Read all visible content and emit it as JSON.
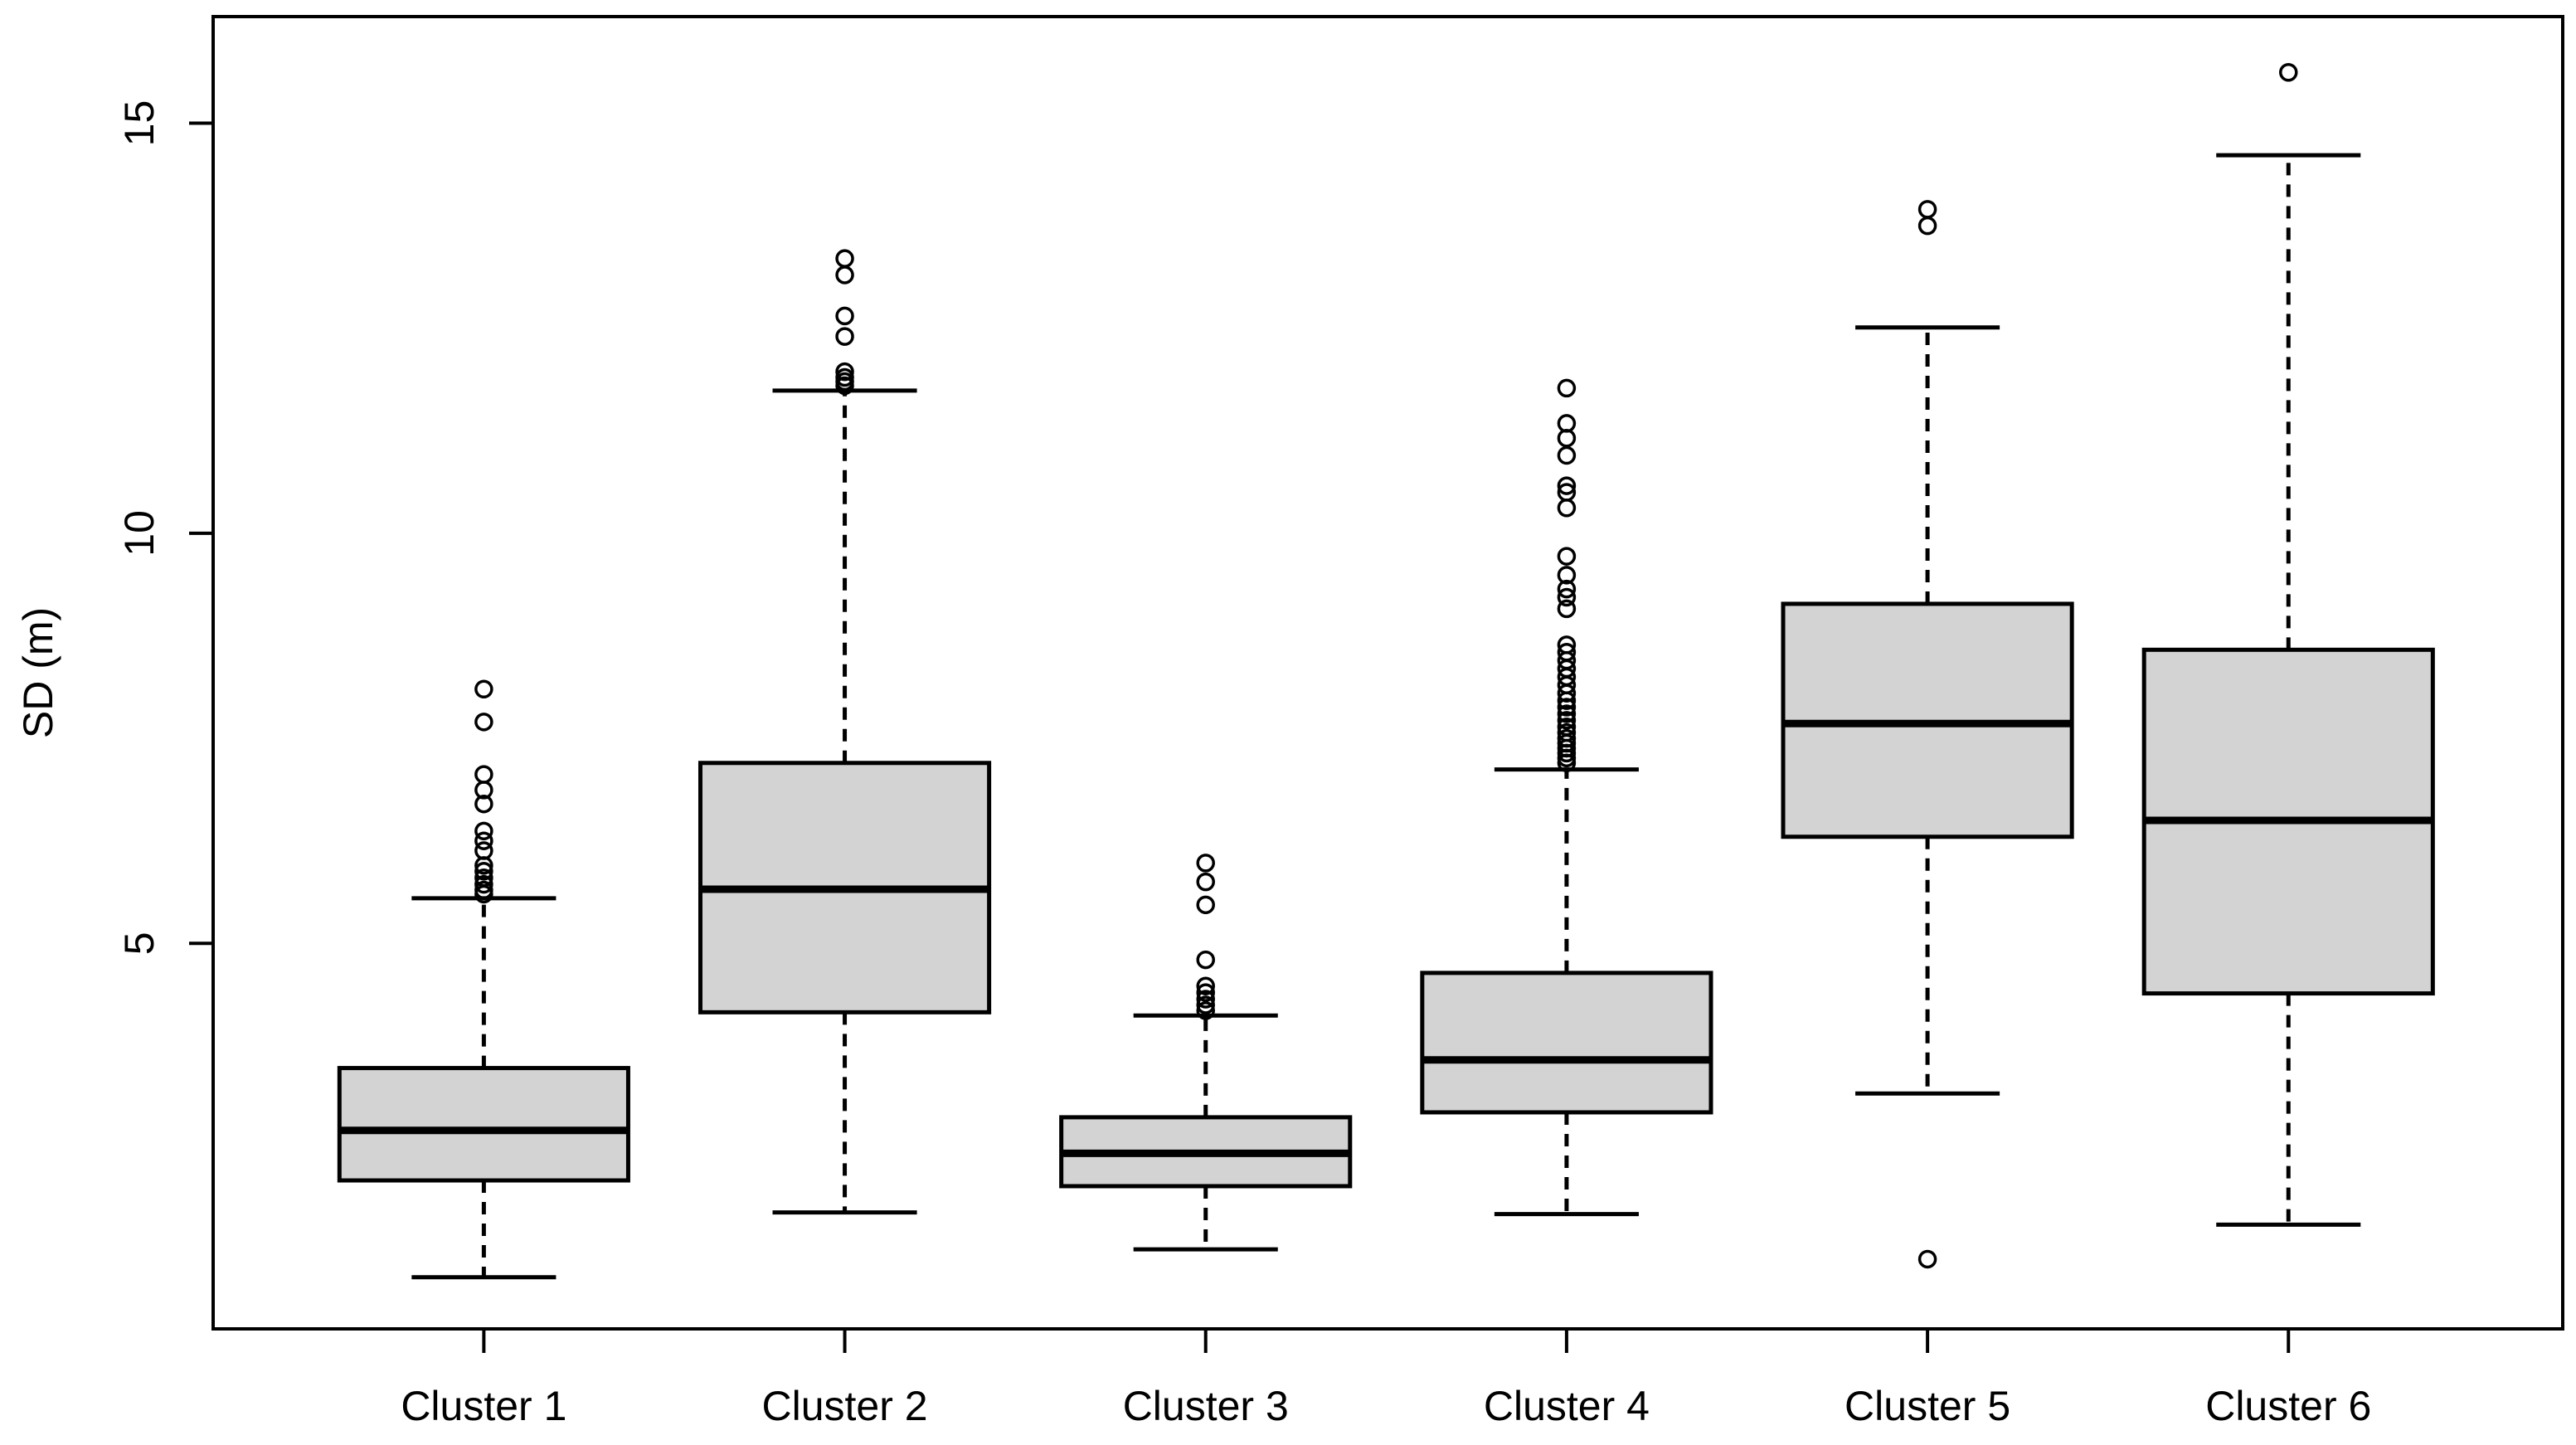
{
  "figure": {
    "background": "#ffffff",
    "accent_color": "#000000"
  },
  "chart_data": {
    "type": "boxplot",
    "title": "",
    "xlabel": "",
    "ylabel": "SD (m)",
    "categories": [
      "Cluster 1",
      "Cluster 2",
      "Cluster 3",
      "Cluster 4",
      "Cluster 5",
      "Cluster 6"
    ],
    "yticks": [
      5,
      10,
      15
    ],
    "ylim": [
      0.3,
      16.3
    ],
    "xlim": [
      0.25,
      6.76
    ],
    "grid": "off",
    "legend": "none",
    "box_fill": "#d3d3d3",
    "stroke_color": "#000000",
    "box_width_units": 0.8,
    "cap_width_units": 0.4,
    "series": [
      {
        "name": "Cluster 1",
        "whisker_low": 0.93,
        "q1": 2.11,
        "median": 2.72,
        "q3": 3.48,
        "whisker_high": 5.55,
        "outliers": [
          5.6,
          5.65,
          5.72,
          5.8,
          5.88,
          5.95,
          6.13,
          6.25,
          6.37,
          6.7,
          6.87,
          7.06,
          7.7,
          8.1
        ]
      },
      {
        "name": "Cluster 2",
        "whisker_low": 1.72,
        "q1": 4.16,
        "median": 5.66,
        "q3": 7.2,
        "whisker_high": 11.74,
        "outliers": [
          11.8,
          11.85,
          11.9,
          11.97,
          12.4,
          12.65,
          13.15,
          13.35
        ]
      },
      {
        "name": "Cluster 3",
        "whisker_low": 1.27,
        "q1": 2.04,
        "median": 2.44,
        "q3": 2.88,
        "whisker_high": 4.12,
        "outliers": [
          4.18,
          4.25,
          4.32,
          4.4,
          4.48,
          4.8,
          5.47,
          5.75,
          5.98
        ]
      },
      {
        "name": "Cluster 4",
        "whisker_low": 1.7,
        "q1": 2.94,
        "median": 3.58,
        "q3": 4.64,
        "whisker_high": 7.12,
        "outliers": [
          7.2,
          7.26,
          7.32,
          7.38,
          7.44,
          7.5,
          7.57,
          7.64,
          7.72,
          7.8,
          7.88,
          7.96,
          8.05,
          8.15,
          8.25,
          8.35,
          8.45,
          8.55,
          8.64,
          9.08,
          9.22,
          9.32,
          9.49,
          9.72,
          10.31,
          10.5,
          10.58,
          10.95,
          11.16,
          11.34,
          11.77
        ]
      },
      {
        "name": "Cluster 5",
        "whisker_low": 3.17,
        "q1": 6.3,
        "median": 7.68,
        "q3": 9.14,
        "whisker_high": 12.51,
        "outliers": [
          1.15,
          13.75,
          13.95
        ]
      },
      {
        "name": "Cluster 6",
        "whisker_low": 1.57,
        "q1": 4.39,
        "median": 6.5,
        "q3": 8.58,
        "whisker_high": 14.61,
        "outliers": [
          15.62
        ]
      }
    ]
  }
}
